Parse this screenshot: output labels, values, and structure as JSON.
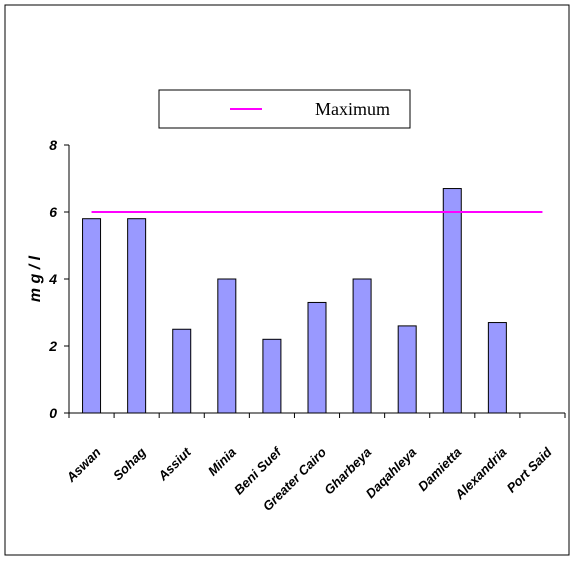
{
  "chart_data": {
    "type": "bar",
    "title": "",
    "xlabel": "",
    "ylabel": "m g / l",
    "categories": [
      "Aswan",
      "Sohag",
      "Assiut",
      "Minia",
      "Beni Suef",
      "Greater Cairo",
      "Gharbeya",
      "Daqahleya",
      "Damietta",
      "Alexandria",
      "Port Said"
    ],
    "series": [
      {
        "values": [
          5.8,
          5.8,
          2.5,
          4.0,
          2.2,
          3.3,
          4.0,
          2.6,
          6.7,
          2.7,
          0
        ]
      },
      {
        "name": "Maximum",
        "type": "line",
        "values": [
          6,
          6,
          6,
          6,
          6,
          6,
          6,
          6,
          6,
          6,
          6
        ]
      }
    ],
    "ylim": [
      0,
      8
    ],
    "yticks": [
      0,
      2,
      4,
      6,
      8
    ],
    "grid": false,
    "legend": {
      "position": "top",
      "entries": [
        "Maximum"
      ]
    },
    "colors": {
      "bar": "#9999ff",
      "bar_edge": "#000000",
      "max_line": "#ff00ff"
    }
  }
}
